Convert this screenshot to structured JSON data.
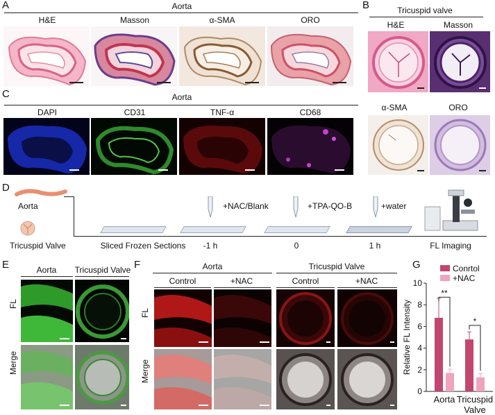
{
  "panels": {
    "A": {
      "letter": "A",
      "group_title": "Aorta",
      "columns": [
        "H&E",
        "Masson",
        "α-SMA",
        "ORO"
      ]
    },
    "B": {
      "letter": "B",
      "group_title": "Tricuspid valve",
      "top_columns": [
        "H&E",
        "Masson"
      ],
      "bottom_columns": [
        "α-SMA",
        "ORO"
      ]
    },
    "C": {
      "letter": "C",
      "group_title": "Aorta",
      "columns": [
        "DAPI",
        "CD31",
        "TNF-α",
        "CD68"
      ]
    },
    "D": {
      "letter": "D",
      "sample_1": "Aorta",
      "sample_2": "Tricuspid Valve",
      "step_labels": [
        "Sliced Frozen Sections",
        "-1 h",
        "0",
        "1 h",
        "FL Imaging"
      ],
      "reagents": [
        "+NAC/Blank",
        "+TPA-QO-B",
        "+water"
      ]
    },
    "E": {
      "letter": "E",
      "columns": [
        "Aorta",
        "Tricuspid Valve"
      ],
      "rows": [
        "FL",
        "Merge"
      ]
    },
    "F": {
      "letter": "F",
      "group_1": "Aorta",
      "group_2": "Tricuspid Valve",
      "columns": [
        "Control",
        "+NAC",
        "Control",
        "+NAC"
      ],
      "rows": [
        "FL",
        "Merge"
      ]
    },
    "G": {
      "letter": "G",
      "significance": [
        "**",
        "*"
      ]
    }
  },
  "chart_data": {
    "type": "bar",
    "categories": [
      "Aorta",
      "Tricuspid Valve"
    ],
    "category_lines": [
      [
        "Aorta"
      ],
      [
        "Tricuspid",
        "Valve"
      ]
    ],
    "series": [
      {
        "name": "Conrtol",
        "values": [
          6.8,
          4.8
        ],
        "errors": [
          1.8,
          0.7
        ],
        "color": "#c2476e"
      },
      {
        "name": "+NAC",
        "values": [
          1.7,
          1.3
        ],
        "errors": [
          0.35,
          0.35
        ],
        "color": "#f0a3bf"
      }
    ],
    "ylabel": "Relative FL Intensity",
    "xlabel": "",
    "ylim": [
      0,
      10
    ],
    "yticks": [
      0,
      2,
      4,
      6,
      8,
      10
    ],
    "legend": "top-right",
    "grid": false
  }
}
